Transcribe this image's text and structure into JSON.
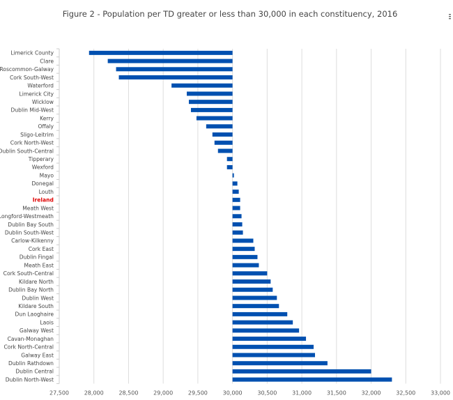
{
  "chart_data": {
    "type": "bar",
    "orientation": "horizontal",
    "title": "Figure 2 - Population per TD greater or less than 30,000 in each constituency, 2016",
    "baseline": 30000,
    "xlim": [
      27500,
      33000
    ],
    "xticks": [
      27500,
      28000,
      28500,
      29000,
      29500,
      30000,
      30500,
      31000,
      31500,
      32000,
      32500,
      33000
    ],
    "xtick_labels": [
      "27,500",
      "28,000",
      "28,500",
      "29,000",
      "29,500",
      "30,000",
      "30,500",
      "31,000",
      "31,500",
      "32,000",
      "32,500",
      "33,000"
    ],
    "grid": "vertical",
    "bar_color": "#0050b0",
    "highlight_color": "#e00000",
    "highlight_category": "Ireland",
    "categories": [
      "Limerick County",
      "Clare",
      "Roscommon-Galway",
      "Cork South-West",
      "Waterford",
      "Limerick City",
      "Wicklow",
      "Dublin Mid-West",
      "Kerry",
      "Offaly",
      "Sligo-Leitrim",
      "Cork North-West",
      "Dublin South-Central",
      "Tipperary",
      "Wexford",
      "Mayo",
      "Donegal",
      "Louth",
      "Ireland",
      "Meath West",
      "Longford-Westmeath",
      "Dublin Bay South",
      "Dublin South-West",
      "Carlow-Kilkenny",
      "Cork East",
      "Dublin Fingal",
      "Meath East",
      "Cork South-Central",
      "Kildare North",
      "Dublin Bay North",
      "Dublin West",
      "Kildare South",
      "Dun Laoghaire",
      "Laois",
      "Galway West",
      "Cavan-Monaghan",
      "Cork North-Central",
      "Galway East",
      "Dublin Rathdown",
      "Dublin Central",
      "Dublin North-West"
    ],
    "values": [
      27930,
      28200,
      28320,
      28360,
      29120,
      29340,
      29370,
      29400,
      29480,
      29620,
      29710,
      29740,
      29790,
      29920,
      29920,
      30020,
      30070,
      30090,
      30110,
      30110,
      30130,
      30140,
      30150,
      30300,
      30320,
      30360,
      30380,
      30500,
      30550,
      30580,
      30640,
      30670,
      30790,
      30870,
      30960,
      31060,
      31170,
      31190,
      31370,
      32000,
      32300
    ]
  },
  "menu": {
    "icon": "hamburger-menu-icon"
  }
}
